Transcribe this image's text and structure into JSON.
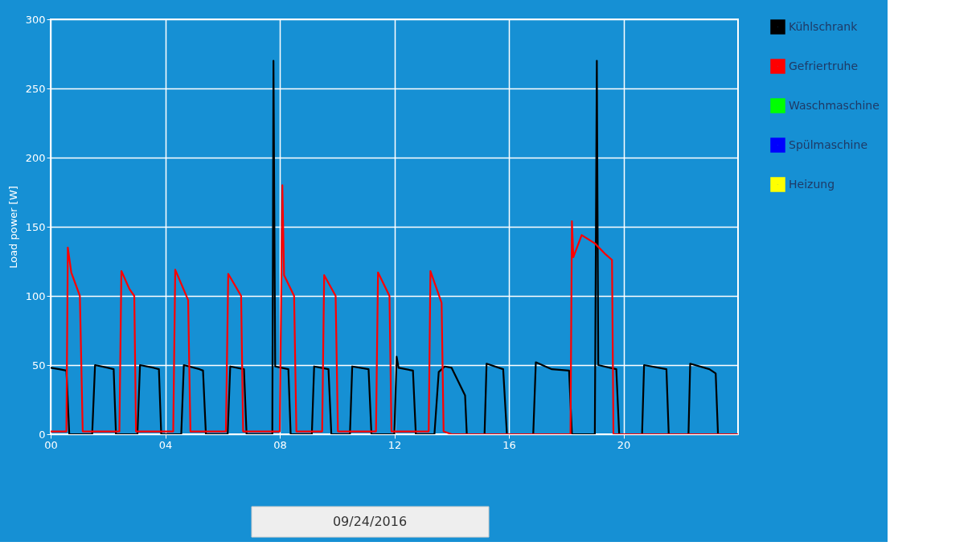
{
  "chart_data": {
    "type": "line",
    "ylabel": "Load power [W]",
    "xlim": [
      0,
      24
    ],
    "ylim": [
      0,
      300
    ],
    "xticks": [
      {
        "value": 0,
        "label": "00"
      },
      {
        "value": 4,
        "label": "04"
      },
      {
        "value": 8,
        "label": "08"
      },
      {
        "value": 12,
        "label": "12"
      },
      {
        "value": 16,
        "label": "16"
      },
      {
        "value": 20,
        "label": "20"
      }
    ],
    "yticks": [
      0,
      50,
      100,
      150,
      200,
      250,
      300
    ],
    "grid": true,
    "legend": "right",
    "line_style": "solid",
    "marker": "none",
    "annotations": [
      "09/24/2016"
    ],
    "series": [
      {
        "name": "Kühlschrank",
        "color": "#000000",
        "x": [
          0,
          0.3,
          0.55,
          0.65,
          1.45,
          1.55,
          2.0,
          2.2,
          2.28,
          3.03,
          3.12,
          3.6,
          3.78,
          3.86,
          4.56,
          4.65,
          5.2,
          5.32,
          5.42,
          6.18,
          6.27,
          6.75,
          6.84,
          7.74,
          7.78,
          7.84,
          8.3,
          8.38,
          9.12,
          9.2,
          9.7,
          9.8,
          10.45,
          10.53,
          11.1,
          11.2,
          12.0,
          12.08,
          12.15,
          12.65,
          12.75,
          13.4,
          13.55,
          13.76,
          14.0,
          14.47,
          14.53,
          15.15,
          15.22,
          15.8,
          15.93,
          16.85,
          16.94,
          17.5,
          18.1,
          18.2,
          19.0,
          19.07,
          19.12,
          19.75,
          19.85,
          20.65,
          20.72,
          21.5,
          21.58,
          22.27,
          22.33,
          23.0,
          23.22,
          23.3,
          24.0
        ],
        "values": [
          48,
          47,
          46,
          0,
          0,
          50,
          48,
          47,
          0,
          0,
          50,
          48,
          47,
          0,
          0,
          50,
          47,
          46,
          0,
          0,
          49,
          47,
          0,
          0,
          270,
          49,
          47,
          0,
          0,
          49,
          47,
          0,
          0,
          49,
          47,
          0,
          0,
          56,
          48,
          46,
          0,
          0,
          45,
          49,
          48,
          28,
          0,
          0,
          51,
          47,
          0,
          0,
          52,
          47,
          46,
          0,
          0,
          270,
          50,
          47,
          0,
          0,
          50,
          47,
          0,
          0,
          51,
          47,
          44,
          0,
          0
        ]
      },
      {
        "name": "Gefriertruhe",
        "color": "#ff0000",
        "x": [
          0,
          0.55,
          0.6,
          0.72,
          1.02,
          1.12,
          2.4,
          2.47,
          2.75,
          2.92,
          2.98,
          4.28,
          4.35,
          4.8,
          4.88,
          6.12,
          6.2,
          6.65,
          6.72,
          8.0,
          8.09,
          8.15,
          8.5,
          8.58,
          9.48,
          9.55,
          9.95,
          10.03,
          11.36,
          11.43,
          11.83,
          11.9,
          13.2,
          13.26,
          13.65,
          13.72,
          14.0,
          18.15,
          18.2,
          18.25,
          18.54,
          19.0,
          19.38,
          19.6,
          19.65,
          24.0
        ],
        "values": [
          2,
          2,
          135,
          117,
          100,
          2,
          2,
          118,
          105,
          100,
          2,
          2,
          119,
          97,
          2,
          2,
          116,
          100,
          2,
          2,
          180,
          115,
          100,
          2,
          2,
          115,
          100,
          2,
          2,
          117,
          100,
          2,
          2,
          118,
          95,
          2,
          0,
          0,
          154,
          128,
          144,
          138,
          130,
          126,
          0,
          0
        ]
      },
      {
        "name": "Waschmaschine",
        "color": "#00ff00"
      },
      {
        "name": "Spülmaschine",
        "color": "#0000ff"
      },
      {
        "name": "Heizung",
        "color": "#ffff00"
      }
    ]
  }
}
